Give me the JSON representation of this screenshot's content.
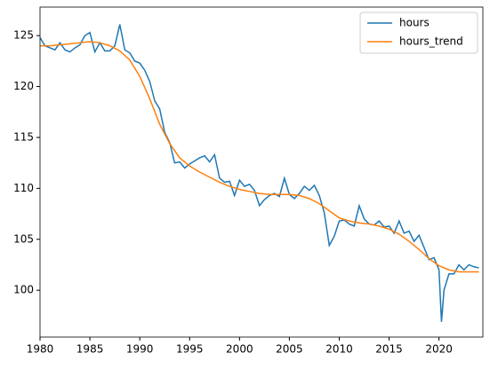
{
  "chart_data": {
    "type": "line",
    "legend": "upper right",
    "xlim": [
      1980,
      2024.4
    ],
    "xticks": [
      1980,
      1985,
      1990,
      1995,
      2000,
      2005,
      2010,
      2015,
      2020
    ],
    "ylim": [
      95.4,
      127.8
    ],
    "yticks": [
      100,
      105,
      110,
      115,
      120,
      125
    ],
    "series": [
      {
        "name": "hours",
        "color": "#1f77b4",
        "x": [
          1980,
          1980.5,
          1981,
          1981.5,
          1982,
          1982.5,
          1983,
          1983.5,
          1984,
          1984.5,
          1985,
          1985.5,
          1986,
          1986.5,
          1987,
          1987.5,
          1988,
          1988.5,
          1989,
          1989.5,
          1990,
          1990.5,
          1991,
          1991.5,
          1992,
          1992.5,
          1993,
          1993.5,
          1994,
          1994.5,
          1995,
          1995.5,
          1996,
          1996.5,
          1997,
          1997.5,
          1998,
          1998.5,
          1999,
          1999.5,
          2000,
          2000.5,
          2001,
          2001.5,
          2002,
          2002.5,
          2003,
          2003.5,
          2004,
          2004.5,
          2005,
          2005.5,
          2006,
          2006.5,
          2007,
          2007.5,
          2008,
          2008.5,
          2009,
          2009.5,
          2010,
          2010.5,
          2011,
          2011.5,
          2012,
          2012.5,
          2013,
          2013.5,
          2014,
          2014.5,
          2015,
          2015.5,
          2016,
          2016.5,
          2017,
          2017.5,
          2018,
          2018.5,
          2019,
          2019.5,
          2020,
          2020.25,
          2020.5,
          2021,
          2021.5,
          2022,
          2022.5,
          2023,
          2023.5,
          2024
        ],
        "values": [
          124.8,
          124.0,
          123.8,
          123.6,
          124.3,
          123.6,
          123.4,
          123.8,
          124.1,
          125.0,
          125.3,
          123.4,
          124.3,
          123.5,
          123.5,
          124.0,
          126.1,
          123.6,
          123.3,
          122.5,
          122.3,
          121.6,
          120.5,
          118.6,
          117.8,
          115.5,
          114.5,
          112.5,
          112.6,
          112.0,
          112.4,
          112.7,
          113.0,
          113.2,
          112.6,
          113.3,
          111.0,
          110.6,
          110.7,
          109.3,
          110.8,
          110.2,
          110.4,
          109.8,
          108.3,
          108.9,
          109.3,
          109.5,
          109.2,
          111.0,
          109.4,
          109.0,
          109.5,
          110.2,
          109.8,
          110.3,
          109.3,
          107.6,
          104.4,
          105.3,
          106.8,
          106.9,
          106.5,
          106.3,
          108.3,
          107.0,
          106.5,
          106.4,
          106.8,
          106.2,
          106.3,
          105.6,
          106.8,
          105.6,
          105.8,
          104.8,
          105.4,
          104.2,
          103.0,
          103.2,
          102.0,
          96.9,
          100.0,
          101.6,
          101.6,
          102.5,
          102.0,
          102.5,
          102.3,
          102.2
        ]
      },
      {
        "name": "hours_trend",
        "color": "#ff7f0e",
        "x": [
          1980,
          1981,
          1982,
          1983,
          1984,
          1985,
          1986,
          1987,
          1988,
          1989,
          1990,
          1991,
          1992,
          1993,
          1994,
          1995,
          1996,
          1997,
          1998,
          1999,
          2000,
          2001,
          2002,
          2003,
          2004,
          2005,
          2006,
          2007,
          2008,
          2009,
          2010,
          2011,
          2012,
          2013,
          2014,
          2015,
          2016,
          2017,
          2018,
          2019,
          2020,
          2021,
          2022,
          2023,
          2024
        ],
        "values": [
          124.0,
          124.0,
          124.1,
          124.2,
          124.3,
          124.4,
          124.3,
          124.0,
          123.5,
          122.6,
          121.0,
          118.8,
          116.3,
          114.4,
          113.0,
          112.2,
          111.6,
          111.1,
          110.6,
          110.2,
          109.9,
          109.7,
          109.5,
          109.4,
          109.4,
          109.4,
          109.3,
          109.0,
          108.5,
          107.8,
          107.1,
          106.8,
          106.6,
          106.5,
          106.3,
          106.0,
          105.5,
          104.8,
          104.0,
          103.1,
          102.4,
          102.0,
          101.8,
          101.8,
          101.8
        ]
      }
    ]
  }
}
